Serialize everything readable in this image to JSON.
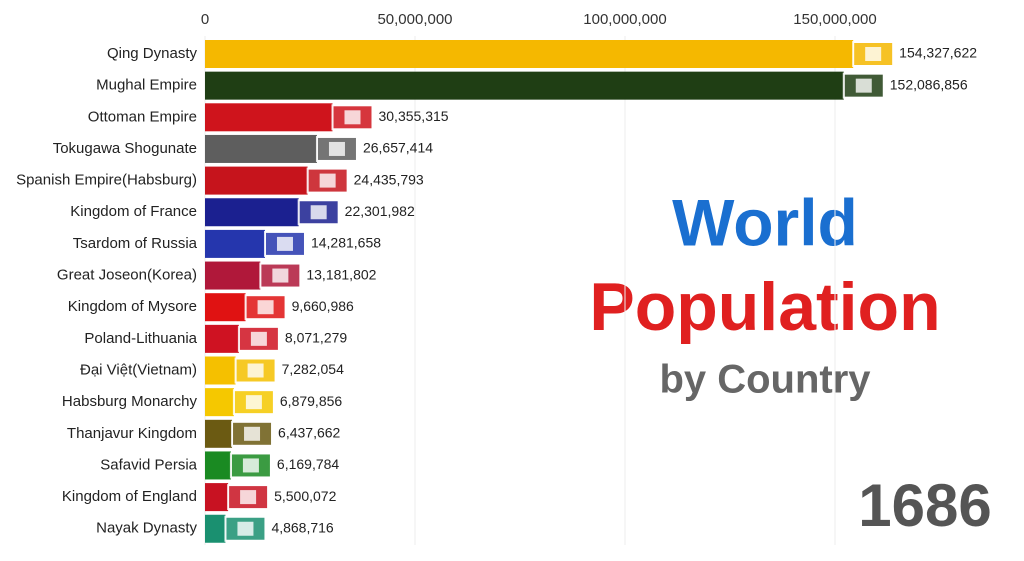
{
  "chart_data": {
    "type": "bar",
    "orientation": "horizontal",
    "title": "World",
    "subtitle": "Population",
    "subtitle2": "by Country",
    "year": "1686",
    "categories": [
      "Qing Dynasty",
      "Mughal Empire",
      "Ottoman Empire",
      "Tokugawa Shogunate",
      "Spanish Empire(Habsburg)",
      "Kingdom of France",
      "Tsardom of Russia",
      "Great Joseon(Korea)",
      "Kingdom of Mysore",
      "Poland-Lithuania",
      "Đại Việt(Vietnam)",
      "Habsburg Monarchy",
      "Thanjavur Kingdom",
      "Safavid Persia",
      "Kingdom of England",
      "Nayak Dynasty"
    ],
    "values": [
      154327622,
      152086856,
      30355315,
      26657414,
      24435793,
      22301982,
      14281658,
      13181802,
      9660986,
      8071279,
      7282054,
      6879856,
      6437662,
      6169784,
      5500072,
      4868716
    ],
    "value_labels": [
      "154,327,622",
      "152,086,856",
      "30,355,315",
      "26,657,414",
      "24,435,793",
      "22,301,982",
      "14,281,658",
      "13,181,802",
      "9,660,986",
      "8,071,279",
      "7,282,054",
      "6,879,856",
      "6,437,662",
      "6,169,784",
      "5,500,072",
      "4,868,716"
    ],
    "colors": [
      "#f5b800",
      "#1f3e14",
      "#cf141c",
      "#5e5e5e",
      "#c6141c",
      "#1b2090",
      "#2536ad",
      "#b0183a",
      "#e01212",
      "#cf1222",
      "#f5c000",
      "#f5c800",
      "#6b5a12",
      "#1a8a22",
      "#c81222",
      "#1a9070"
    ],
    "xlim": [
      0,
      190000000
    ],
    "xticks": [
      0,
      {
        "value": 50000000,
        "label": "50,000,000"
      },
      {
        "value": 100000000,
        "label": "100,000,000"
      },
      {
        "value": 150000000,
        "label": "150,000,000"
      }
    ],
    "grid": true
  }
}
